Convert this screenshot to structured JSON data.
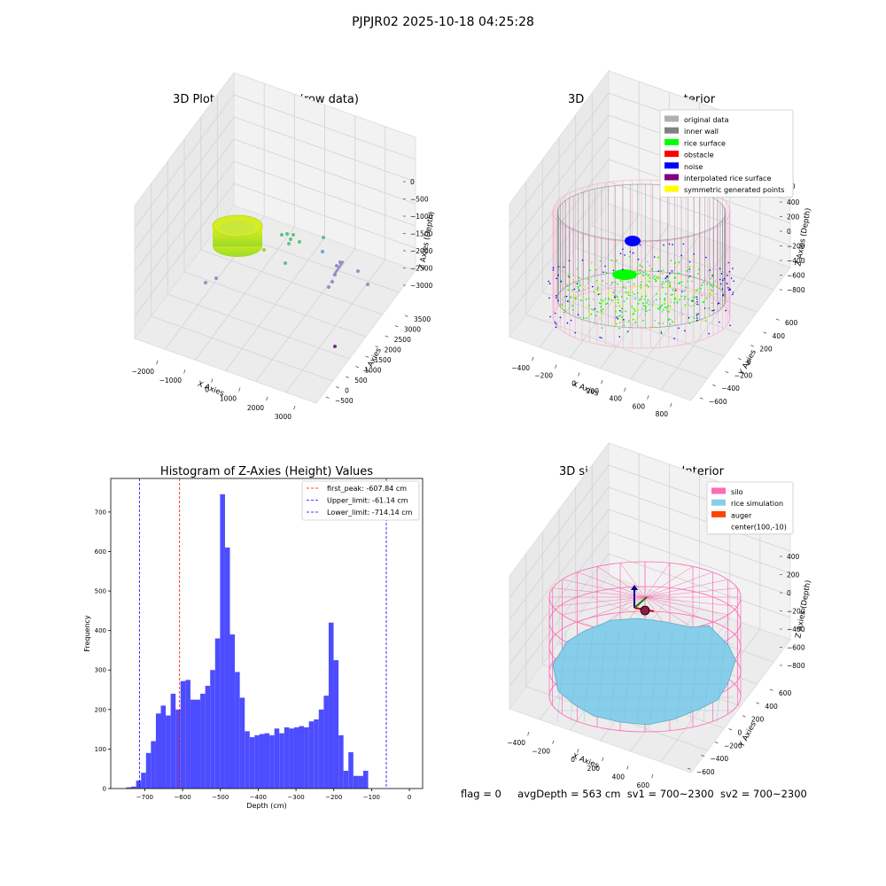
{
  "figure_title": "PJPJR02 2025-10-18 04:25:28",
  "footer": {
    "flag": "flag = 0",
    "avg_depth": "avgDepth = 563 cm",
    "sv1": "sv1 = 700~2300",
    "sv2": "sv2 = 700~2300"
  },
  "colors": {
    "histogram_bar": "#4d4dff",
    "first_peak_line": "#ff0000",
    "limit_lines": "#0000ff",
    "silo_wire": "#ff69b4",
    "rice_simulation": "#87ceeb",
    "auger": "#ff4500",
    "inner_wall": "#808080",
    "rice_surface": "#00ff00",
    "noise": "#0000ff",
    "interpolated": "#800080",
    "symmetric": "#ffff00",
    "original": "#b0b0b0",
    "obstacle": "#ff0000"
  },
  "panel1": {
    "title": "3D Plot of Silo Interior(row data)",
    "xlabel": "X Axies",
    "ylabel": "Y Axies",
    "zlabel": "Z Axies (Depth)",
    "xticks": [
      "−2000",
      "−1000",
      "0",
      "1000",
      "2000",
      "3000"
    ],
    "yticks": [
      "−500",
      "0",
      "500",
      "1000",
      "1500",
      "2000",
      "2500",
      "3000",
      "3500"
    ],
    "zticks": [
      "0",
      "−500",
      "−1000",
      "−1500",
      "−2000",
      "−2500",
      "−3000"
    ]
  },
  "panel2": {
    "title": "3D classify of Silo Interior",
    "xlabel": "X Axies",
    "ylabel": "Y Axies",
    "zlabel": "Z Axies (Depth)",
    "xticks": [
      "−400",
      "−200",
      "0",
      "200",
      "400",
      "600",
      "800"
    ],
    "yticks": [
      "−600",
      "−400",
      "−200",
      "0",
      "200",
      "400",
      "600"
    ],
    "zticks": [
      "400",
      "200",
      "0",
      "−200",
      "−400",
      "−600",
      "−800"
    ],
    "zticks_partial": "00",
    "legend": [
      {
        "label": "original data",
        "color": "#b0b0b0"
      },
      {
        "label": "inner wall",
        "color": "#808080"
      },
      {
        "label": "rice surface",
        "color": "#00ff00"
      },
      {
        "label": "obstacle",
        "color": "#ff0000"
      },
      {
        "label": "noise",
        "color": "#0000ff"
      },
      {
        "label": "interpolated rice surface",
        "color": "#800080"
      },
      {
        "label": "symmetric generated points",
        "color": "#ffff00"
      }
    ]
  },
  "panel4": {
    "title": "3D simulation of Silo Interior",
    "xlabel": "X Axies",
    "ylabel": "Y Axies",
    "zlabel": "Z Axies (Depth)",
    "xticks": [
      "−400",
      "−200",
      "0",
      "200",
      "400",
      "600"
    ],
    "yticks": [
      "−600",
      "−400",
      "−200",
      "0",
      "200",
      "400",
      "600"
    ],
    "zticks": [
      "400",
      "200",
      "0",
      "−200",
      "−400",
      "−600",
      "−800"
    ],
    "legend": [
      {
        "label": "silo",
        "color": "#ff69b4"
      },
      {
        "label": "rice simulation",
        "color": "#87ceeb"
      },
      {
        "label": "auger",
        "color": "#ff4500"
      },
      {
        "label": "center(100,-10)",
        "color": ""
      }
    ]
  },
  "chart_data": [
    {
      "type": "bar",
      "title": "Histogram of Z-Axies (Height) Values",
      "xlabel": "Depth (cm)",
      "ylabel": "Frequency",
      "xlim": [
        -790,
        35
      ],
      "ylim": [
        0,
        785
      ],
      "xticks": [
        -700,
        -600,
        -500,
        -400,
        -300,
        -200,
        -100,
        0
      ],
      "xtick_labels": [
        "−700",
        "−600",
        "−500",
        "−400",
        "−300",
        "−200",
        "−100",
        "0"
      ],
      "yticks": [
        0,
        100,
        200,
        300,
        400,
        500,
        600,
        700
      ],
      "bin_edges_start": -749,
      "bin_width": 13.06,
      "values": [
        3,
        5,
        20,
        40,
        90,
        120,
        190,
        210,
        185,
        240,
        200,
        272,
        275,
        225,
        225,
        240,
        260,
        300,
        380,
        745,
        610,
        390,
        295,
        230,
        145,
        130,
        135,
        138,
        140,
        135,
        152,
        140,
        155,
        152,
        155,
        158,
        155,
        170,
        175,
        200,
        235,
        420,
        325,
        135,
        45,
        92,
        32,
        32,
        45
      ],
      "legend": [
        {
          "label": "first_peak: -607.84 cm",
          "color": "#ff0000"
        },
        {
          "label": "Upper_limit: -61.14 cm",
          "color": "#0000ff"
        },
        {
          "label": "Lower_limit: -714.14 cm",
          "color": "#0000ff"
        }
      ],
      "vlines": [
        {
          "x": -607.84,
          "color": "#ff0000"
        },
        {
          "x": -61.14,
          "color": "#0000ff"
        },
        {
          "x": -714.14,
          "color": "#0000ff"
        }
      ],
      "legend_position": "upper right"
    }
  ]
}
